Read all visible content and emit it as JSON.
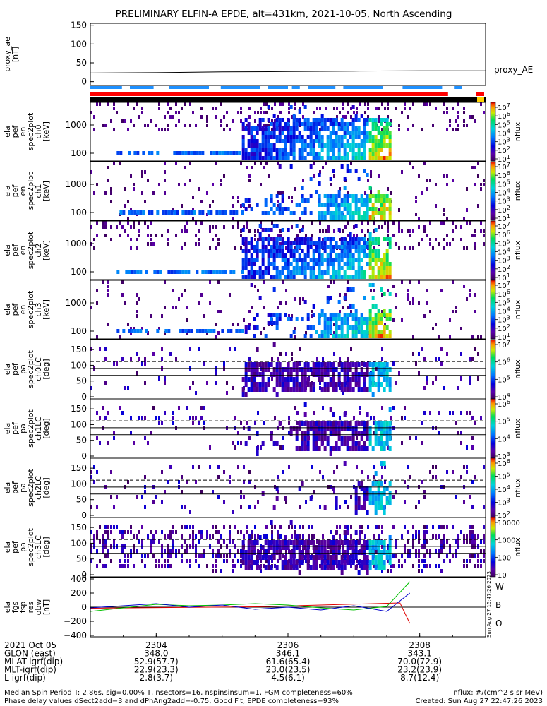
{
  "title": "PRELIMINARY ELFIN-A EPDE, alt=431km, 2021-10-05, North Ascending",
  "colors": {
    "blue_bar": "#1e90ff",
    "red_bar": "#ff0000",
    "black_bar": "#000000",
    "wave_W": "#e00000",
    "wave_B": "#00c000",
    "wave_O": "#0000cc"
  },
  "chart_data": [
    {
      "type": "line",
      "panel": "proxy_ae",
      "ylabel": [
        "proxy_ae",
        "[nT]"
      ],
      "yticks": [
        "150",
        "100",
        "50",
        "0"
      ],
      "ylim": [
        -10,
        155
      ],
      "label": "proxy_AE",
      "x": [
        "2303",
        "2304",
        "2305",
        "2306",
        "2307",
        "2308",
        "2309"
      ],
      "values": [
        23,
        24,
        26,
        27,
        28,
        29,
        29
      ],
      "bars": {
        "blue": [
          [
            0.0,
            0.08
          ],
          [
            0.1,
            0.16
          ],
          [
            0.2,
            0.3
          ],
          [
            0.33,
            0.43
          ],
          [
            0.45,
            0.5
          ],
          [
            0.51,
            0.53
          ],
          [
            0.55,
            0.62
          ],
          [
            0.64,
            0.74
          ],
          [
            0.79,
            0.89
          ],
          [
            0.92,
            0.94
          ]
        ],
        "red": [
          [
            0.0,
            0.99
          ],
          [
            1.09,
            1.11
          ]
        ],
        "black": [
          [
            0.0,
            1.11
          ]
        ]
      }
    },
    {
      "type": "heatmap",
      "panel": "spec2plot_en",
      "ylabel": [
        "ela",
        "pef",
        "en",
        "spec2plot",
        "ch0",
        "[keV]"
      ],
      "yticks": [
        "1000",
        "100"
      ],
      "scale": "log",
      "colorbar": {
        "label": "nflux",
        "ticks": [
          "10^7",
          "10^6",
          "10^5",
          "10^4",
          "10^3",
          "10^2",
          "10^1"
        ]
      }
    },
    {
      "type": "heatmap",
      "panel": "spec2plot_en",
      "ylabel": [
        "ela",
        "pef",
        "en",
        "spec2plot",
        "ch1",
        "[keV]"
      ],
      "yticks": [
        "1000",
        "100"
      ],
      "scale": "log",
      "colorbar": {
        "label": "nflux",
        "ticks": [
          "10^7",
          "10^6",
          "10^5",
          "10^4",
          "10^3",
          "10^2",
          "10^1"
        ]
      }
    },
    {
      "type": "heatmap",
      "panel": "spec2plot_en",
      "ylabel": [
        "ela",
        "pef",
        "en",
        "spec2plot",
        "ch2",
        "[keV]"
      ],
      "yticks": [
        "1000",
        "100"
      ],
      "scale": "log",
      "colorbar": {
        "label": "nflux",
        "ticks": [
          "10^7",
          "10^6",
          "10^5",
          "10^4",
          "10^3",
          "10^2",
          "10^1"
        ]
      }
    },
    {
      "type": "heatmap",
      "panel": "spec2plot_en",
      "ylabel": [
        "ela",
        "pef",
        "en",
        "spec2plot",
        "ch3",
        "[keV]"
      ],
      "yticks": [
        "1000",
        "100"
      ],
      "scale": "log",
      "colorbar": {
        "label": "nflux",
        "ticks": [
          "10^7",
          "10^6",
          "10^5",
          "10^4",
          "10^3",
          "10^2",
          "10^1"
        ]
      }
    },
    {
      "type": "heatmap",
      "panel": "spec2plot_pa",
      "ylabel": [
        "ela",
        "pef",
        "pa",
        "spec2plot",
        "ch0LC",
        "[deg]"
      ],
      "yticks": [
        "150",
        "100",
        "50",
        "0"
      ],
      "hlines": [
        90,
        68
      ],
      "dashed": 112,
      "colorbar": {
        "label": "nflux",
        "ticks": [
          "10^7",
          "10^6",
          "10^5",
          "10^4"
        ]
      }
    },
    {
      "type": "heatmap",
      "panel": "spec2plot_pa",
      "ylabel": [
        "ela",
        "pef",
        "pa",
        "spec2plot",
        "ch1LC",
        "[deg]"
      ],
      "yticks": [
        "150",
        "100",
        "50",
        "0"
      ],
      "hlines": [
        90,
        68
      ],
      "dashed": 112,
      "colorbar": {
        "label": "nflux",
        "ticks": [
          "10^6",
          "10^5",
          "10^4",
          "10^3"
        ]
      }
    },
    {
      "type": "heatmap",
      "panel": "spec2plot_pa",
      "ylabel": [
        "ela",
        "pef",
        "pa",
        "spec2plot",
        "ch2LC",
        "[deg]"
      ],
      "yticks": [
        "150",
        "100",
        "50",
        "0"
      ],
      "hlines": [
        90,
        68
      ],
      "dashed": 112,
      "colorbar": {
        "label": "nflux",
        "ticks": [
          "10^6",
          "10^5",
          "10^4",
          "10^3",
          "10^2"
        ]
      }
    },
    {
      "type": "heatmap",
      "panel": "spec2plot_pa",
      "ylabel": [
        "ela",
        "pef",
        "pa",
        "spec2plot",
        "ch3LC",
        "[deg]"
      ],
      "yticks": [
        "150",
        "100",
        "50",
        "0"
      ],
      "hlines": [
        90,
        68
      ],
      "dashed": 112,
      "colorbar": {
        "label": "nflux",
        "ticks": [
          "10000",
          "1000",
          "100",
          "10"
        ]
      }
    },
    {
      "type": "line",
      "panel": "res",
      "ylabel": [
        "ela",
        "fgs",
        "fsp",
        "res",
        "obw",
        "[nT]"
      ],
      "yticks": [
        "400",
        "200",
        "0",
        "−200",
        "−400"
      ],
      "ylim": [
        -420,
        420
      ],
      "legend": [
        "W",
        "B",
        "O"
      ],
      "side_text": "Sun Aug 27 15:47:26 2023",
      "series": [
        {
          "name": "W",
          "x": [
            "2303",
            "2305.5",
            "2307.7",
            "2307.85"
          ],
          "values": [
            -15,
            5,
            60,
            -230
          ]
        },
        {
          "name": "B",
          "x": [
            "2303",
            "2303.5",
            "2304",
            "2304.5",
            "2305",
            "2305.5",
            "2306",
            "2306.5",
            "2307",
            "2307.5",
            "2307.85"
          ],
          "values": [
            -60,
            -10,
            40,
            20,
            30,
            50,
            30,
            -10,
            -40,
            10,
            360
          ]
        },
        {
          "name": "O",
          "x": [
            "2303",
            "2303.5",
            "2304",
            "2304.5",
            "2305",
            "2305.5",
            "2306",
            "2306.5",
            "2307",
            "2307.5",
            "2307.85"
          ],
          "values": [
            -10,
            20,
            50,
            0,
            30,
            -30,
            0,
            -40,
            20,
            -60,
            200
          ]
        }
      ]
    }
  ],
  "xaxis": {
    "ticks": [
      "2304",
      "2306",
      "2308"
    ],
    "labels": [
      "2021 Oct 05",
      "GLON (east)",
      "MLAT-igrf(dip)",
      "MLT-igrf(dip)",
      "L-igrf(dip)"
    ],
    "rows": [
      [
        "348.0",
        "52.9(57.7)",
        "22.9(23.3)",
        "2.8(3.7)"
      ],
      [
        "346.1",
        "61.6(65.4)",
        "23.0(23.5)",
        "4.5(6.1)"
      ],
      [
        "343.1",
        "70.0(72.9)",
        "23.2(23.9)",
        "8.7(12.4)"
      ]
    ]
  },
  "footer": {
    "line1": "Median Spin Period T: 2.86s, sig=0.00% T, nsectors=16, nspinsinsum=1, FGM completeness=60%",
    "line2": "Phase delay values dSect2add=3 and dPhAng2add=-0.75, Good Fit, EPDE completeness=93%",
    "nflux": "nflux: #/(cm^2 s sr MeV)",
    "created": "Created: Sun Aug 27 22:47:26 2023"
  }
}
